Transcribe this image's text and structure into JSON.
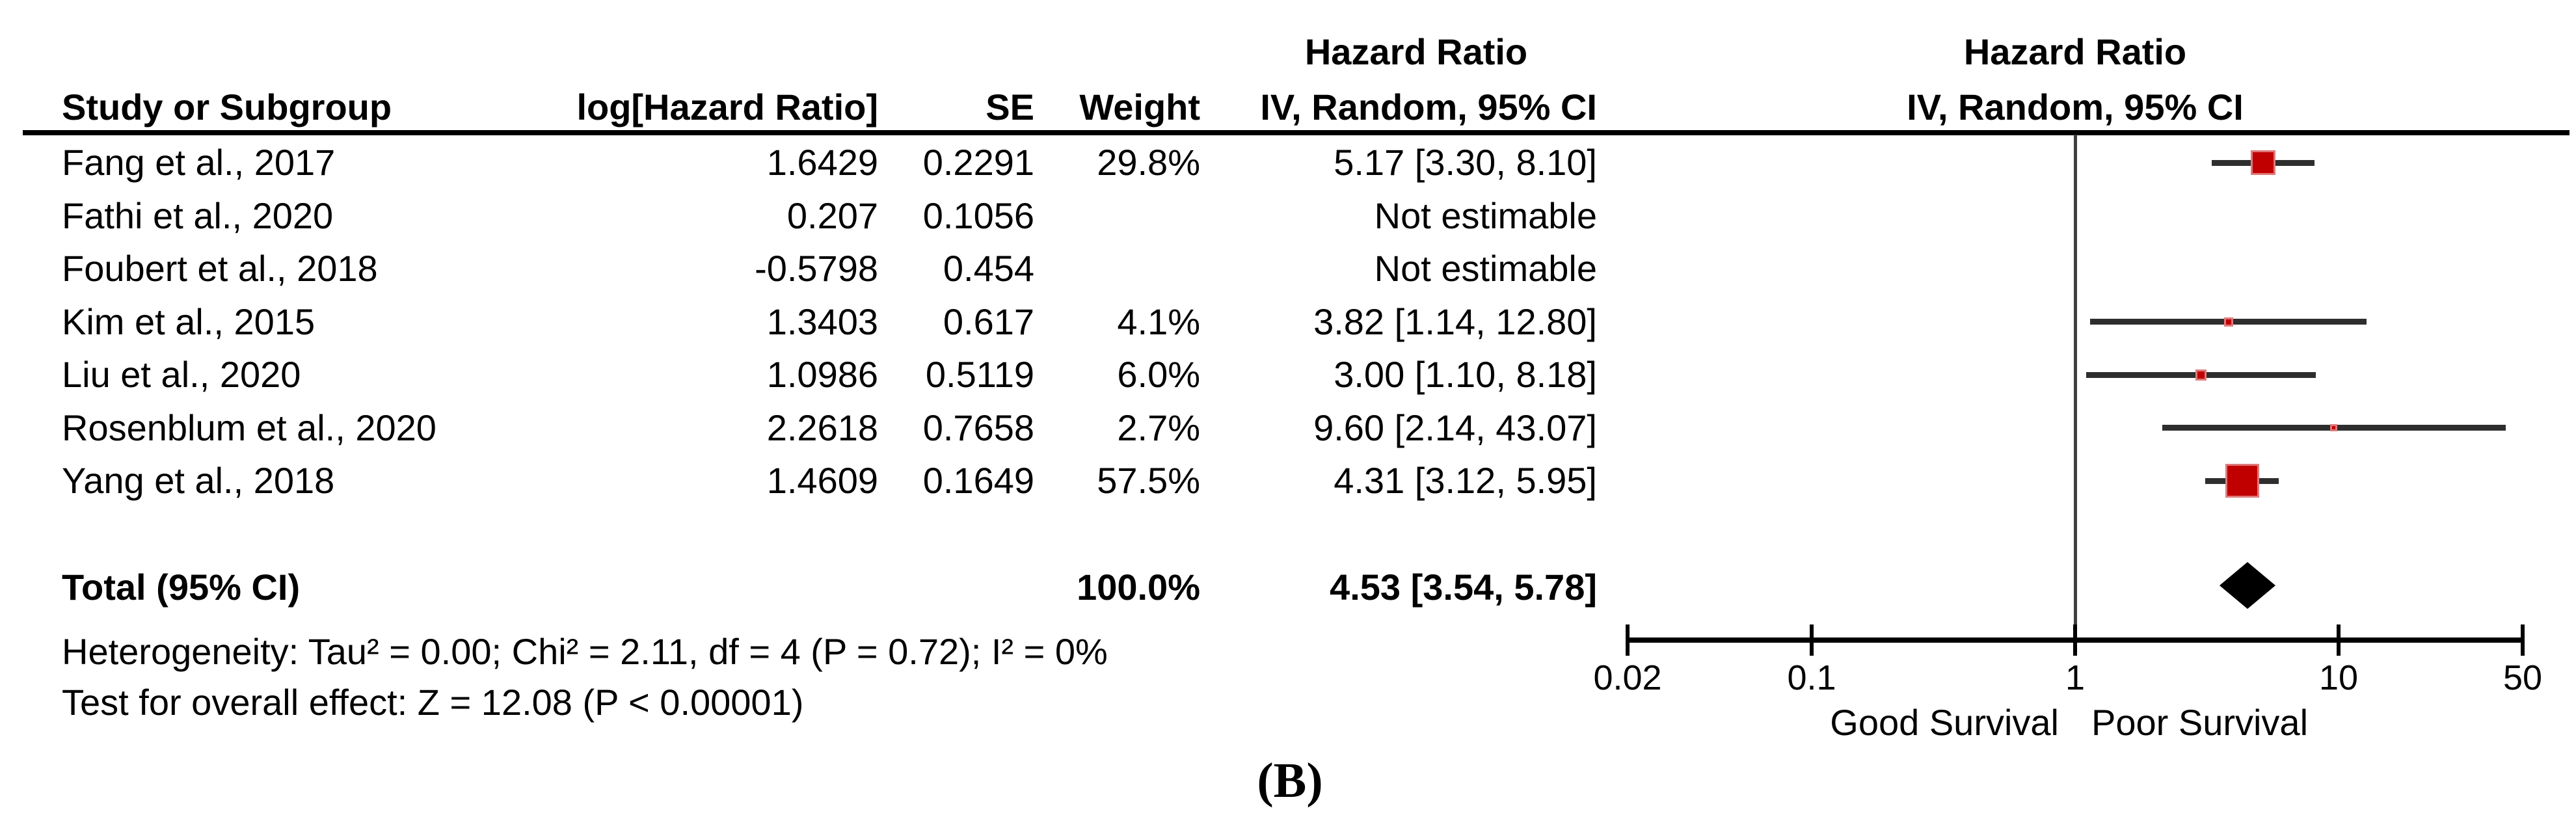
{
  "panel_label": "(B)",
  "colors": {
    "marker_fill": "#c00000",
    "marker_border": "#de7a7a",
    "ci_line": "#2e2e2e",
    "diamond": "#000000",
    "ref_line": "#3f3f3f",
    "axis": "#000000",
    "text": "#000000",
    "background": "#ffffff"
  },
  "table": {
    "headers": {
      "study": "Study or Subgroup",
      "log_hr": "log[Hazard Ratio]",
      "se": "SE",
      "weight": "Weight",
      "stats_hr_title": "Hazard Ratio",
      "stats_hr_sub": "IV, Random, 95% CI",
      "plot_hr_title": "Hazard Ratio",
      "plot_hr_sub": "IV, Random, 95% CI"
    },
    "studies": [
      {
        "name": "Fang et al., 2017",
        "log_hr": "1.6429",
        "se": "0.2291",
        "weight": "29.8%",
        "ci_text": "5.17 [3.30, 8.10]",
        "hr": 5.17,
        "lo": 3.3,
        "hi": 8.1,
        "weight_pct": 29.8,
        "estimable": true
      },
      {
        "name": "Fathi et al., 2020",
        "log_hr": "0.207",
        "se": "0.1056",
        "weight": "",
        "ci_text": "Not estimable",
        "estimable": false
      },
      {
        "name": "Foubert et al., 2018",
        "log_hr": "-0.5798",
        "se": "0.454",
        "weight": "",
        "ci_text": "Not estimable",
        "estimable": false
      },
      {
        "name": "Kim et al., 2015",
        "log_hr": "1.3403",
        "se": "0.617",
        "weight": "4.1%",
        "ci_text": "3.82 [1.14, 12.80]",
        "hr": 3.82,
        "lo": 1.14,
        "hi": 12.8,
        "weight_pct": 4.1,
        "estimable": true
      },
      {
        "name": "Liu et al., 2020",
        "log_hr": "1.0986",
        "se": "0.5119",
        "weight": "6.0%",
        "ci_text": "3.00 [1.10, 8.18]",
        "hr": 3.0,
        "lo": 1.1,
        "hi": 8.18,
        "weight_pct": 6.0,
        "estimable": true
      },
      {
        "name": "Rosenblum et al., 2020",
        "log_hr": "2.2618",
        "se": "0.7658",
        "weight": "2.7%",
        "ci_text": "9.60 [2.14, 43.07]",
        "hr": 9.6,
        "lo": 2.14,
        "hi": 43.07,
        "weight_pct": 2.7,
        "estimable": true
      },
      {
        "name": "Yang et al., 2018",
        "log_hr": "1.4609",
        "se": "0.1649",
        "weight": "57.5%",
        "ci_text": "4.31 [3.12, 5.95]",
        "hr": 4.31,
        "lo": 3.12,
        "hi": 5.95,
        "weight_pct": 57.5,
        "estimable": true
      }
    ],
    "total": {
      "label": "Total (95% CI)",
      "weight": "100.0%",
      "ci_text": "4.53 [3.54, 5.78]",
      "hr": 4.53,
      "lo": 3.54,
      "hi": 5.78
    },
    "heterogeneity": "Heterogeneity: Tau² = 0.00; Chi² = 2.11, df = 4 (P = 0.72); I² = 0%",
    "overall_effect": "Test for overall effect: Z = 12.08 (P < 0.00001)"
  },
  "axis": {
    "tick_labels": [
      "0.02",
      "0.1",
      "1",
      "10",
      "50"
    ],
    "tick_values": [
      0.02,
      0.1,
      1,
      10,
      50
    ],
    "left_label": "Good Survival",
    "right_label": "Poor Survival"
  },
  "chart_data": {
    "type": "scatter",
    "subtype": "forest-plot",
    "title": "Hazard Ratio",
    "legend": "IV, Random, 95% CI",
    "x_scale": "log10",
    "xlim": [
      0.02,
      50
    ],
    "x_ticks": [
      0.02,
      0.1,
      1,
      10,
      50
    ],
    "x_direction_labels": {
      "left_of_1": "Good Survival",
      "right_of_1": "Poor Survival"
    },
    "points": [
      {
        "study": "Fang et al., 2017",
        "log_hr": 1.6429,
        "se": 0.2291,
        "hr": 5.17,
        "ci": [
          3.3,
          8.1
        ],
        "weight_pct": 29.8
      },
      {
        "study": "Fathi et al., 2020",
        "log_hr": 0.207,
        "se": 0.1056,
        "hr": null,
        "ci": null,
        "weight_pct": null,
        "note": "Not estimable"
      },
      {
        "study": "Foubert et al., 2018",
        "log_hr": -0.5798,
        "se": 0.454,
        "hr": null,
        "ci": null,
        "weight_pct": null,
        "note": "Not estimable"
      },
      {
        "study": "Kim et al., 2015",
        "log_hr": 1.3403,
        "se": 0.617,
        "hr": 3.82,
        "ci": [
          1.14,
          12.8
        ],
        "weight_pct": 4.1
      },
      {
        "study": "Liu et al., 2020",
        "log_hr": 1.0986,
        "se": 0.5119,
        "hr": 3.0,
        "ci": [
          1.1,
          8.18
        ],
        "weight_pct": 6.0
      },
      {
        "study": "Rosenblum et al., 2020",
        "log_hr": 2.2618,
        "se": 0.7658,
        "hr": 9.6,
        "ci": [
          2.14,
          43.07
        ],
        "weight_pct": 2.7
      },
      {
        "study": "Yang et al., 2018",
        "log_hr": 1.4609,
        "se": 0.1649,
        "hr": 4.31,
        "ci": [
          3.12,
          5.95
        ],
        "weight_pct": 57.5
      }
    ],
    "summary": {
      "label": "Total (95% CI)",
      "hr": 4.53,
      "ci": [
        3.54,
        5.78
      ],
      "weight_pct": 100.0
    },
    "heterogeneity": {
      "tau2": 0.0,
      "chi2": 2.11,
      "df": 4,
      "p": 0.72,
      "i2_pct": 0
    },
    "overall_effect": {
      "z": 12.08,
      "p": "< 0.00001"
    }
  }
}
